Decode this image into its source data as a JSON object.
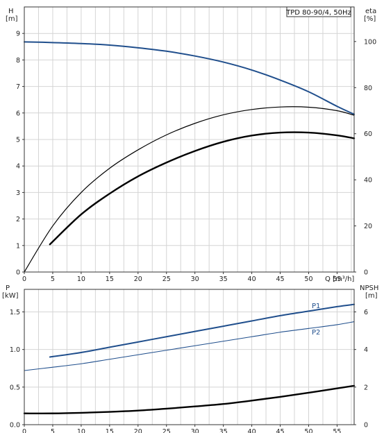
{
  "chart_data": [
    {
      "type": "line",
      "title": "TPD 80-90/4, 50Hz",
      "x_axis": {
        "label": "Q [m³/h]",
        "range": [
          0,
          58
        ],
        "ticks": [
          0,
          5,
          10,
          15,
          20,
          25,
          30,
          35,
          40,
          45,
          50,
          55
        ]
      },
      "y_left": {
        "label": [
          "H",
          "[m]"
        ],
        "range": [
          0,
          10
        ],
        "ticks": [
          0,
          1,
          2,
          3,
          4,
          5,
          6,
          7,
          8,
          9
        ]
      },
      "y_right": {
        "label": [
          "eta",
          "[%]"
        ],
        "range": [
          0,
          100
        ],
        "scale_max": 115,
        "ticks": [
          0,
          20,
          40,
          60,
          80,
          100
        ]
      },
      "grid": true,
      "series": [
        {
          "axis": "left",
          "color": "#1f4e8c",
          "width": 2,
          "x": [
            0,
            4.5,
            10,
            15,
            20,
            25,
            30,
            35,
            40,
            45,
            50,
            55,
            58
          ],
          "y": [
            8.68,
            8.66,
            8.62,
            8.56,
            8.46,
            8.33,
            8.15,
            7.92,
            7.62,
            7.24,
            6.8,
            6.25,
            5.95
          ]
        },
        {
          "axis": "right",
          "color": "#000000",
          "width": 1.2,
          "x": [
            0,
            5,
            10,
            15,
            20,
            25,
            30,
            35,
            40,
            45,
            50,
            55,
            58
          ],
          "y": [
            0,
            20,
            34.5,
            45,
            53,
            59.5,
            64.5,
            68.2,
            70.5,
            71.6,
            71.5,
            70,
            68
          ]
        },
        {
          "axis": "right",
          "color": "#000000",
          "width": 2.4,
          "x": [
            4.5,
            10,
            15,
            20,
            25,
            30,
            35,
            40,
            45,
            50,
            55,
            58
          ],
          "y": [
            12,
            25,
            34,
            41.5,
            47.5,
            52.5,
            56.5,
            59.2,
            60.5,
            60.5,
            59.3,
            58
          ]
        }
      ]
    },
    {
      "type": "line",
      "x_axis": {
        "range": [
          0,
          58
        ],
        "ticks": [
          0,
          5,
          10,
          15,
          20,
          25,
          30,
          35,
          40,
          45,
          50,
          55
        ]
      },
      "y_left": {
        "label": [
          "P",
          "[kW]"
        ],
        "range": [
          0,
          1.8
        ],
        "ticks": [
          "0.0",
          "0.5",
          "1.0",
          "1.5"
        ]
      },
      "y_right": {
        "label": [
          "NPSH",
          "[m]"
        ],
        "range": [
          0,
          7.2
        ],
        "ticks": [
          0,
          2,
          4,
          6
        ]
      },
      "grid": true,
      "series": [
        {
          "name": "P1",
          "axis": "left",
          "color": "#1f4e8c",
          "width": 2,
          "x": [
            4.5,
            10,
            15,
            20,
            25,
            30,
            35,
            40,
            45,
            50,
            55,
            58
          ],
          "y": [
            0.9,
            0.96,
            1.03,
            1.1,
            1.17,
            1.24,
            1.31,
            1.38,
            1.45,
            1.51,
            1.57,
            1.6
          ]
        },
        {
          "name": "P2",
          "axis": "left",
          "color": "#1f4e8c",
          "width": 1.1,
          "x": [
            0,
            4.5,
            10,
            15,
            20,
            25,
            30,
            35,
            40,
            45,
            50,
            55,
            58
          ],
          "y": [
            0.72,
            0.76,
            0.81,
            0.87,
            0.93,
            0.99,
            1.05,
            1.11,
            1.17,
            1.23,
            1.28,
            1.33,
            1.37
          ]
        },
        {
          "axis": "right",
          "color": "#000000",
          "width": 2.4,
          "x": [
            0,
            5,
            10,
            15,
            20,
            25,
            30,
            35,
            40,
            45,
            50,
            55,
            58
          ],
          "y": [
            0.6,
            0.6,
            0.63,
            0.68,
            0.75,
            0.85,
            0.97,
            1.1,
            1.28,
            1.48,
            1.7,
            1.93,
            2.07
          ]
        }
      ]
    }
  ]
}
